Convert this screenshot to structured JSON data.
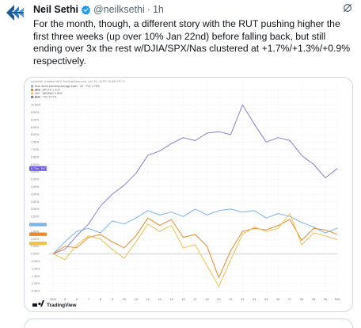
{
  "tweet": {
    "author_name": "Neil Sethi",
    "handle": "@neilksethi",
    "separator": "·",
    "time": "1h",
    "text": "For the month, though, a different story with the RUT pushing higher the first three weeks (up over 10% Jan 22nd) before falling back, but still ending over 3x the rest w/DJIA/SPX/Nas clustered at +1.7%/+1.3%/+0.9% respectively."
  },
  "icons": {
    "avatar": "logo-avatar-icon",
    "verified": "verified-badge-icon",
    "grok": "grok-icon",
    "tradingview": "tradingview-logo-icon"
  },
  "colors": {
    "rut": "#8a7fc7",
    "djia": "#7fb3e6",
    "spx": "#e88a2a",
    "nas": "#f0c14b",
    "verified": "#1d9bf0",
    "rut_tag": "#6b5bd6"
  },
  "chart": {
    "header_line": "neilsethi created with TradingView.com, Jan 30, 2025 16:48 UTC-5",
    "legend": [
      "Dow Jones Industrial Average Index · 1D · TVC 1.72%",
      "SPX · SPCFD 1.31%",
      "IXIC · NASDAQ 0.94%",
      "RUT · TVC 5.72%"
    ],
    "watermark": "TradingView",
    "rut_tag": "5.72% · RUT"
  },
  "chart_data": {
    "type": "line",
    "x": [
      "2024",
      "5",
      "6",
      "7",
      "8",
      "9",
      "10",
      "12",
      "13",
      "14",
      "15",
      "16",
      "17",
      "19",
      "20",
      "21",
      "22",
      "23",
      "24",
      "26",
      "27",
      "28",
      "29",
      "30",
      "Feb"
    ],
    "y_ticks": [
      "11.00%",
      "10.50%",
      "10.00%",
      "9.50%",
      "9.00%",
      "8.50%",
      "8.00%",
      "7.50%",
      "7.00%",
      "6.50%",
      "6.00%",
      "5.50%",
      "5.00%",
      "4.50%",
      "4.00%",
      "3.50%",
      "3.00%",
      "2.50%",
      "2.00%",
      "1.50%",
      "1.00%",
      "0.50%",
      "0.00%",
      "-0.50%",
      "-1.00%",
      "-1.50%",
      "-2.00%",
      "-2.50%"
    ],
    "ylim": [
      -2.75,
      11.4
    ],
    "series": [
      {
        "name": "RUT",
        "values": [
          0.0,
          0.3,
          1.2,
          2.0,
          3.2,
          4.0,
          4.6,
          5.4,
          6.6,
          6.9,
          7.4,
          7.8,
          7.6,
          8.1,
          8.2,
          8.0,
          10.0,
          8.7,
          7.5,
          7.8,
          7.6,
          6.6,
          6.0,
          5.1,
          5.72
        ]
      },
      {
        "name": "DJIA",
        "values": [
          0.0,
          0.8,
          1.5,
          1.7,
          1.4,
          2.2,
          2.0,
          2.4,
          2.9,
          2.6,
          2.8,
          2.5,
          3.0,
          2.6,
          2.9,
          3.0,
          2.8,
          2.9,
          2.4,
          2.7,
          2.5,
          2.1,
          1.8,
          1.4,
          1.72
        ]
      },
      {
        "name": "SPX",
        "values": [
          0.0,
          0.5,
          0.4,
          1.1,
          1.3,
          0.8,
          0.4,
          1.2,
          2.4,
          1.9,
          2.3,
          1.1,
          1.3,
          0.5,
          -1.6,
          0.2,
          1.5,
          1.7,
          1.6,
          1.9,
          2.3,
          0.9,
          1.7,
          1.6,
          1.31
        ]
      },
      {
        "name": "NAS",
        "values": [
          0.0,
          -0.4,
          0.6,
          1.2,
          1.0,
          0.3,
          -0.3,
          0.8,
          2.0,
          1.5,
          1.9,
          0.4,
          0.6,
          -0.8,
          -2.2,
          -0.4,
          1.3,
          1.8,
          1.5,
          1.7,
          2.7,
          0.6,
          1.4,
          1.2,
          0.94
        ]
      }
    ],
    "grid": true,
    "legend_position": "top-left"
  }
}
